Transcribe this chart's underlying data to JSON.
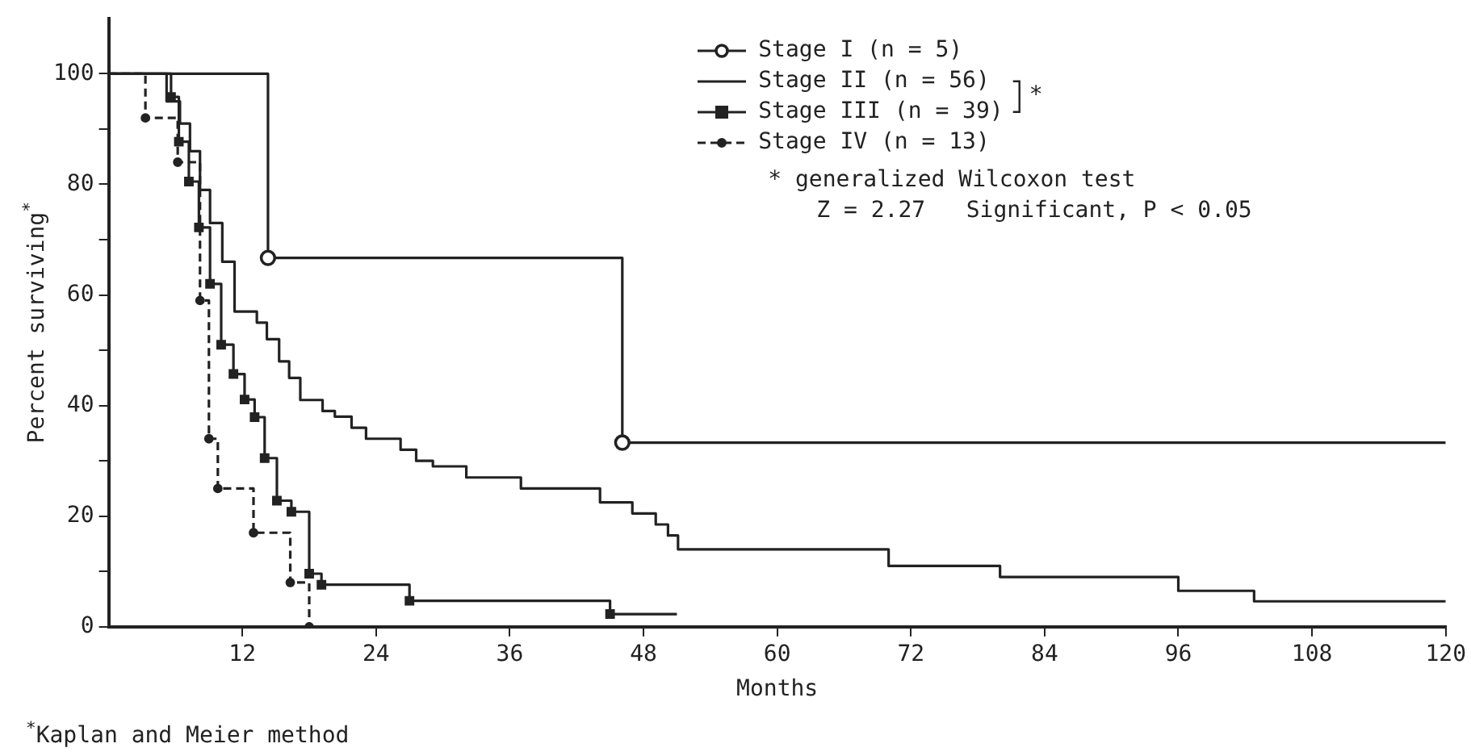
{
  "chart_data": {
    "type": "step",
    "xlabel": "Months",
    "ylabel": "Percent surviving$^{*}$",
    "xlim": [
      0,
      120
    ],
    "ylim": [
      0,
      110
    ],
    "xticks": [
      12,
      24,
      36,
      48,
      60,
      72,
      84,
      96,
      108,
      120
    ],
    "yticks": [
      0,
      {
        "value": 10,
        "label": null
      },
      20,
      {
        "value": 30,
        "label": null
      },
      40,
      {
        "value": 50,
        "label": null
      },
      60,
      {
        "value": 70,
        "label": null
      },
      80,
      {
        "value": 90,
        "label": null
      },
      100
    ],
    "grid": false,
    "legend": "top right",
    "annotations": [
      "*",
      "* generalized Wilcoxon test",
      "Z = 2.27   Significant, P < 0.05",
      "$^{*}$Kaplan and Meier method"
    ],
    "series": [
      {
        "name": "Stage I (n = 5)",
        "color": "#222222",
        "marker": "circle",
        "line_style": "solid",
        "x": [
          0,
          14.3,
          46.1,
          120
        ],
        "values": [
          100,
          66.7,
          33.3,
          33.3
        ]
      },
      {
        "name": "Stage II (n = 56)",
        "color": "#222222",
        "marker": "none",
        "line_style": "solid",
        "x": [
          0,
          5.2,
          6.4,
          7.3,
          8.2,
          9.1,
          10.2,
          11.3,
          13.3,
          14.2,
          15.3,
          16.2,
          17.2,
          19.2,
          20.3,
          21.8,
          23.1,
          26.2,
          27.6,
          29.1,
          32.1,
          37.0,
          44.1,
          47.0,
          49.1,
          50.2,
          51.1,
          70.0,
          72.9,
          80.0,
          96.0,
          102.8,
          120
        ],
        "values": [
          100,
          95,
          91,
          86,
          79,
          73,
          66,
          57,
          55,
          52,
          48,
          45,
          41,
          39,
          38,
          36,
          34,
          32,
          30,
          29,
          27,
          25,
          22.5,
          20.5,
          18.5,
          16.5,
          14,
          11,
          11,
          9,
          6.5,
          4.6,
          4.6
        ]
      },
      {
        "name": "Stage III (n = 39)",
        "color": "#222222",
        "marker": "square",
        "line_style": "solid",
        "x": [
          0,
          5.6,
          6.3,
          7.2,
          8.1,
          9.1,
          10.1,
          11.2,
          12.2,
          13.1,
          14.0,
          15.1,
          16.4,
          18.0,
          19.1,
          27.0,
          45.0,
          51
        ],
        "values": [
          100,
          95.8,
          87.7,
          80.5,
          72.2,
          62,
          51,
          45.7,
          41.1,
          37.9,
          30.5,
          22.8,
          20.8,
          9.6,
          7.6,
          4.7,
          2.3,
          2.3
        ]
      },
      {
        "name": "Stage IV (n = 13)",
        "color": "#222222",
        "marker": "circle",
        "line_style": "dashed",
        "x": [
          0,
          3.3,
          6.2,
          8.2,
          9.0,
          9.8,
          13.0,
          16.3,
          18.0
        ],
        "values": [
          100,
          92,
          84,
          59,
          34,
          25,
          17,
          8,
          0
        ]
      }
    ]
  }
}
